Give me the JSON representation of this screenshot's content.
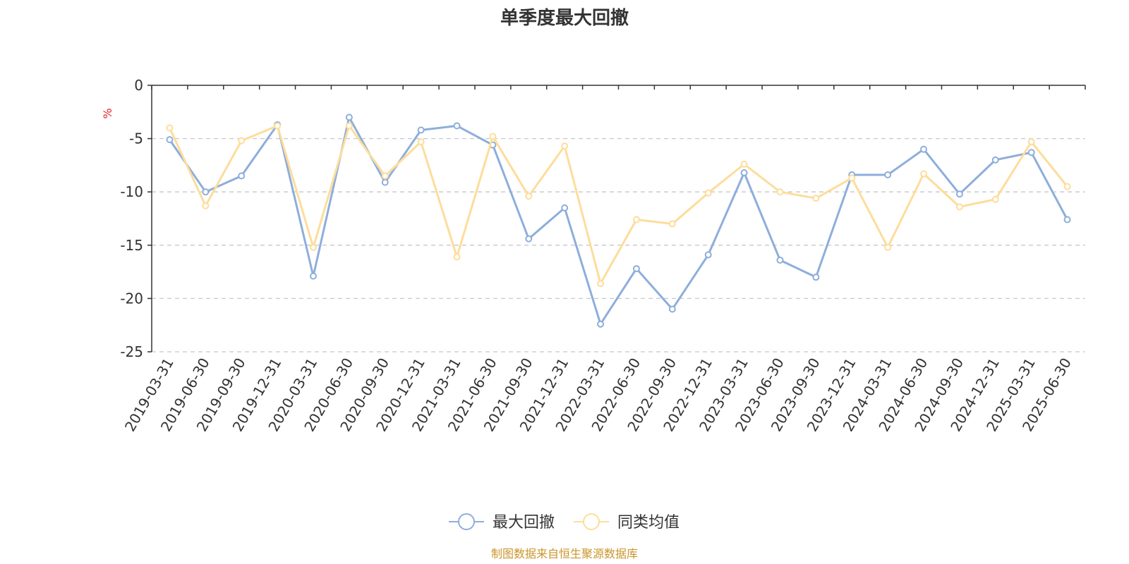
{
  "chart_data": {
    "type": "line",
    "title": "单季度最大回撤",
    "ylabel": "%",
    "ylim": [
      -25,
      0
    ],
    "yticks": [
      0,
      -5,
      -10,
      -15,
      -20,
      -25
    ],
    "grid": "horizontal-dashed",
    "legend_position": "bottom-center",
    "categories": [
      "2019-03-31",
      "2019-06-30",
      "2019-09-30",
      "2019-12-31",
      "2020-03-31",
      "2020-06-30",
      "2020-09-30",
      "2020-12-31",
      "2021-03-31",
      "2021-06-30",
      "2021-09-30",
      "2021-12-31",
      "2022-03-31",
      "2022-06-30",
      "2022-09-30",
      "2022-12-31",
      "2023-03-31",
      "2023-06-30",
      "2023-09-30",
      "2023-12-31",
      "2024-03-31",
      "2024-06-30",
      "2024-09-30",
      "2024-12-31",
      "2025-03-31",
      "2025-06-30"
    ],
    "series": [
      {
        "name": "最大回撤",
        "color": "#8eaedb",
        "values": [
          -5.1,
          -10.0,
          -8.5,
          -3.7,
          -17.9,
          -3.0,
          -9.1,
          -4.2,
          -3.8,
          -5.6,
          -14.4,
          -11.5,
          -22.4,
          -17.2,
          -21.0,
          -15.9,
          -8.2,
          -16.4,
          -18.0,
          -8.4,
          -8.4,
          -6.0,
          -10.2,
          -7.0,
          -6.3,
          -12.6
        ]
      },
      {
        "name": "同类均值",
        "color": "#fddd9b",
        "values": [
          -4.0,
          -11.3,
          -5.2,
          -3.8,
          -15.2,
          -3.8,
          -8.5,
          -5.3,
          -16.1,
          -4.8,
          -10.4,
          -5.7,
          -18.6,
          -12.6,
          -13.0,
          -10.1,
          -7.4,
          -10.0,
          -10.6,
          -8.7,
          -15.2,
          -8.3,
          -11.4,
          -10.7,
          -5.3,
          -9.5
        ]
      }
    ]
  },
  "source": "制图数据来自恒生聚源数据库"
}
